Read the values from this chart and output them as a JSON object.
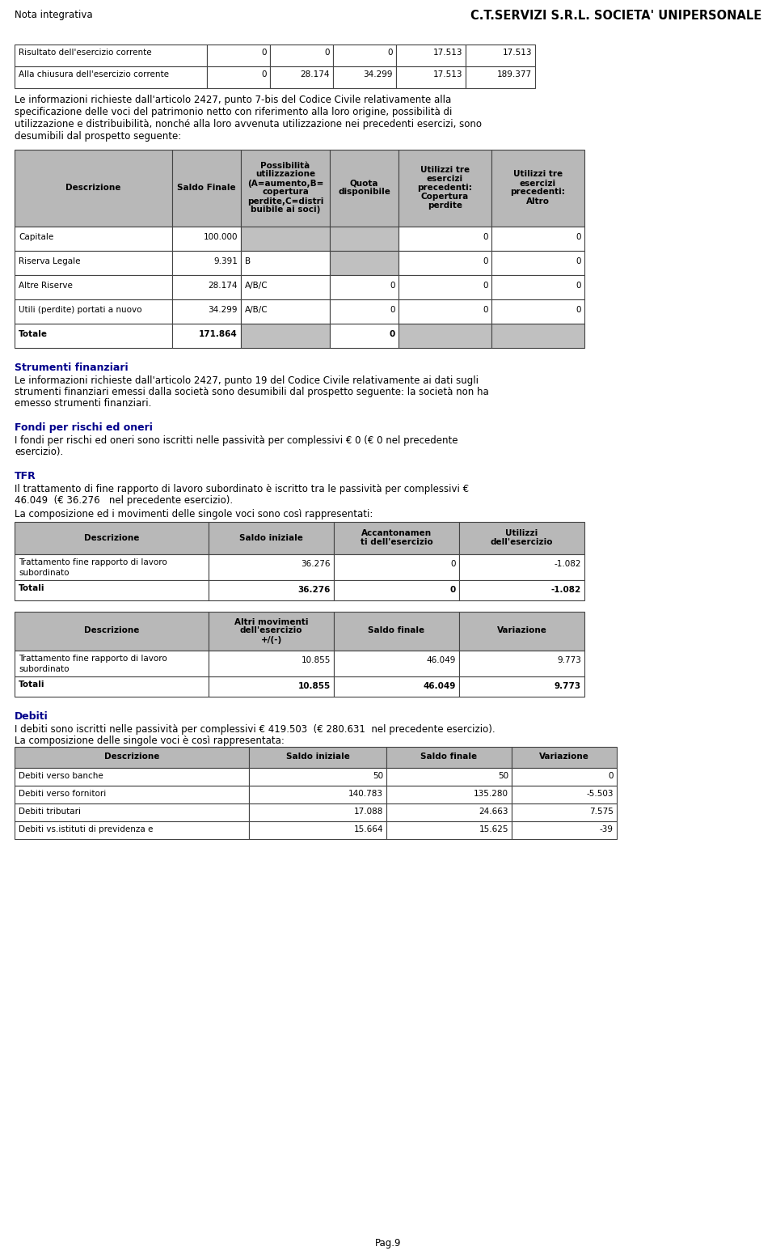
{
  "page_title_left": "Nota integrativa",
  "page_title_right": "C.T.SERVIZI S.R.L. SOCIETA' UNIPERSONALE",
  "page_number": "Pag.9",
  "bg_color": "#ffffff",
  "gray_header": "#b8b8b8",
  "border_color": "#444444",
  "blue_heading": "#00008B",
  "top_table_rows": [
    [
      "Risultato dell'esercizio corrente",
      "0",
      "0",
      "0",
      "17.513",
      "17.513"
    ],
    [
      "Alla chiusura dell'esercizio corrente",
      "0",
      "28.174",
      "34.299",
      "17.513",
      "189.377"
    ]
  ],
  "intro_lines": [
    "Le informazioni richieste dall'articolo 2427, punto 7-bis del Codice Civile relativamente alla",
    "specificazione delle voci del patrimonio netto con riferimento alla loro origine, possibilità di",
    "utilizzazione e distribuibilità, nonché alla loro avvenuta utilizzazione nei precedenti esercizi, sono",
    "desumibili dal prospetto seguente:"
  ],
  "main_table_headers": [
    "Descrizione",
    "Saldo Finale",
    "Possibilità\nutilizzazione\n(A=aumento,B=\ncopertura\nperdite,C=distri\nbuibile ai soci)",
    "Quota\ndisponibile",
    "Utilizzi tre\nesercizi\nprecedenti:\nCopertura\nperdite",
    "Utilizzi tre\nesercizi\nprecedenti:\nAltro"
  ],
  "main_table_rows": [
    [
      "Capitale",
      "100.000",
      "",
      "",
      "0",
      "0"
    ],
    [
      "Riserva Legale",
      "9.391",
      "B",
      "",
      "0",
      "0"
    ],
    [
      "Altre Riserve",
      "28.174",
      "A/B/C",
      "0",
      "0",
      "0"
    ],
    [
      "Utili (perdite) portati a nuovo",
      "34.299",
      "A/B/C",
      "0",
      "0",
      "0"
    ],
    [
      "Totale",
      "171.864",
      "",
      "0",
      "",
      ""
    ]
  ],
  "main_grey_cells": {
    "0": [
      2,
      3
    ],
    "1": [
      3
    ],
    "4": [
      2,
      4,
      5
    ]
  },
  "strumenti_heading": "Strumenti finanziari",
  "strumenti_lines": [
    "Le informazioni richieste dall'articolo 2427, punto 19 del Codice Civile relativamente ai dati sugli",
    "strumenti finanziari emessi dalla società sono desumibili dal prospetto seguente: la società non ha",
    "emesso strumenti finanziari."
  ],
  "fondi_heading": "Fondi per rischi ed oneri",
  "fondi_lines": [
    "I fondi per rischi ed oneri sono iscritti nelle passività per complessivi € 0 (€ 0 nel precedente",
    "esercizio)."
  ],
  "tfr_heading": "TFR",
  "tfr_lines1": [
    "Il trattamento di fine rapporto di lavoro subordinato è iscritto tra le passività per complessivi €",
    "46.049  (€ 36.276   nel precedente esercizio)."
  ],
  "tfr_line2": "La composizione ed i movimenti delle singole voci sono così rappresentati:",
  "tfr_table1_headers": [
    "Descrizione",
    "Saldo iniziale",
    "Accantonamen\nti dell'esercizio",
    "Utilizzi\ndell'esercizio"
  ],
  "tfr_table1_rows": [
    [
      "Trattamento fine rapporto di lavoro\nsubordinato",
      "36.276",
      "0",
      "-1.082"
    ],
    [
      "Totali",
      "36.276",
      "0",
      "-1.082"
    ]
  ],
  "tfr_table2_headers": [
    "Descrizione",
    "Altri movimenti\ndell'esercizio\n+/(-)",
    "Saldo finale",
    "Variazione"
  ],
  "tfr_table2_rows": [
    [
      "Trattamento fine rapporto di lavoro\nsubordinato",
      "10.855",
      "46.049",
      "9.773"
    ],
    [
      "Totali",
      "10.855",
      "46.049",
      "9.773"
    ]
  ],
  "debiti_heading": "Debiti",
  "debiti_line1": "I debiti sono iscritti nelle passività per complessivi € 419.503  (€ 280.631  nel precedente esercizio).",
  "debiti_line2": "La composizione delle singole voci è così rappresentata:",
  "debiti_table_headers": [
    "Descrizione",
    "Saldo iniziale",
    "Saldo finale",
    "Variazione"
  ],
  "debiti_table_rows": [
    [
      "Debiti verso banche",
      "50",
      "50",
      "0"
    ],
    [
      "Debiti verso fornitori",
      "140.783",
      "135.280",
      "-5.503"
    ],
    [
      "Debiti tributari",
      "17.088",
      "24.663",
      "7.575"
    ],
    [
      "Debiti vs.istituti di previdenza e",
      "15.664",
      "15.625",
      "-39"
    ]
  ]
}
